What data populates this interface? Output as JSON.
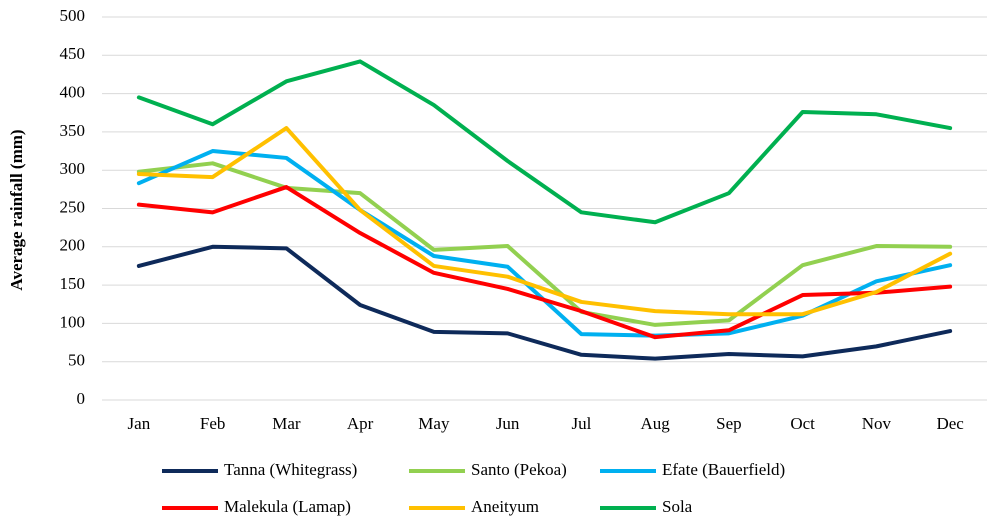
{
  "chart_data": {
    "type": "line",
    "y_label": "Average rainfall (mm)",
    "categories": [
      "Jan",
      "Feb",
      "Mar",
      "Apr",
      "May",
      "Jun",
      "Jul",
      "Aug",
      "Sep",
      "Oct",
      "Nov",
      "Dec"
    ],
    "series": [
      {
        "name": "Tanna (Whitegrass)",
        "color": "#0e2a5a",
        "values": [
          175,
          200,
          198,
          124,
          89,
          87,
          59,
          54,
          60,
          57,
          70,
          90
        ]
      },
      {
        "name": "Santo (Pekoa)",
        "color": "#92d050",
        "values": [
          298,
          309,
          277,
          270,
          196,
          201,
          115,
          98,
          104,
          176,
          201,
          200
        ]
      },
      {
        "name": "Efate (Bauerfield)",
        "color": "#00b0f0",
        "values": [
          283,
          325,
          316,
          248,
          188,
          174,
          86,
          84,
          87,
          110,
          155,
          176
        ]
      },
      {
        "name": "Malekula (Lamap)",
        "color": "#ff0000",
        "values": [
          255,
          245,
          278,
          218,
          166,
          145,
          116,
          82,
          91,
          137,
          140,
          148
        ]
      },
      {
        "name": "Aneityum",
        "color": "#ffc000",
        "values": [
          295,
          291,
          355,
          248,
          175,
          161,
          128,
          116,
          112,
          112,
          141,
          191
        ]
      },
      {
        "name": "Sola",
        "color": "#00b050",
        "values": [
          395,
          360,
          416,
          442,
          385,
          312,
          245,
          232,
          270,
          376,
          373,
          355
        ]
      }
    ],
    "ylim": [
      0,
      500
    ],
    "yticks": [
      0,
      50,
      100,
      150,
      200,
      250,
      300,
      350,
      400,
      450,
      500
    ],
    "grid": true
  }
}
